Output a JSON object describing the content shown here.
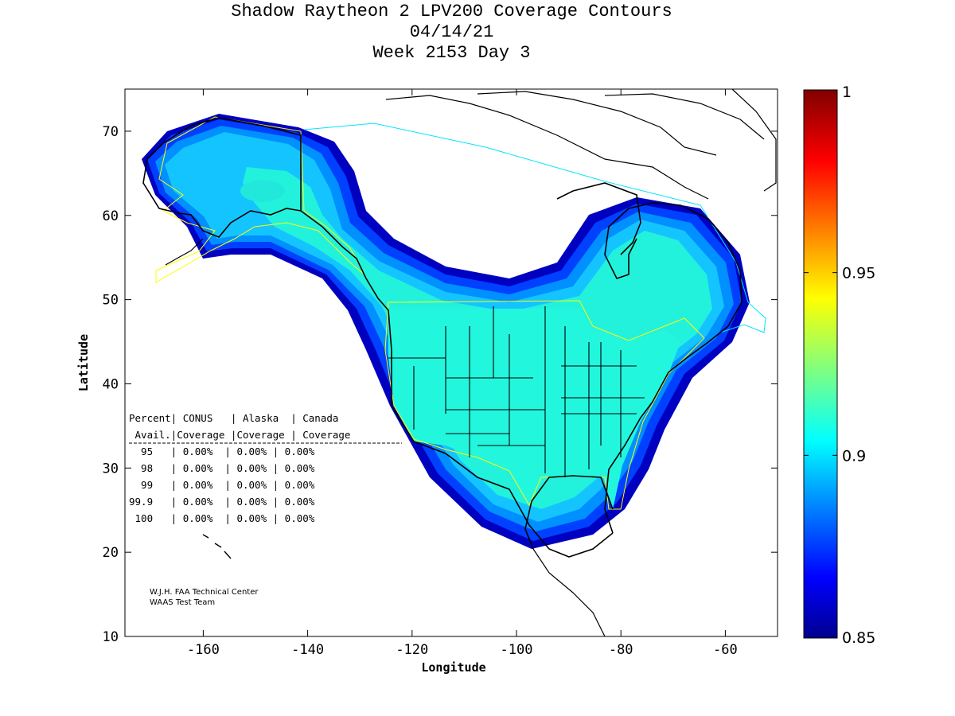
{
  "title": {
    "line1": "Shadow Raytheon 2 LPV200 Coverage Contours",
    "line2": "04/14/21",
    "line3": "Week 2153 Day 3"
  },
  "axes": {
    "xlabel": "Longitude",
    "ylabel": "Latitude",
    "x_ticks": [
      "-160",
      "-140",
      "-120",
      "-100",
      "-80",
      "-60"
    ],
    "y_ticks": [
      "10",
      "20",
      "30",
      "40",
      "50",
      "60",
      "70"
    ],
    "xlim": [
      -175,
      -50
    ],
    "ylim": [
      10,
      75
    ]
  },
  "colorbar": {
    "ticks": [
      "1",
      "0.95",
      "0.9",
      "0.85"
    ],
    "range": [
      0.85,
      1.0
    ],
    "colormap": "jet"
  },
  "table": {
    "header1": "Percent| CONUS   | Alaska  | Canada",
    "header2": " Avail.|Coverage |Coverage | Coverage",
    "rows": [
      "  95   | 0.00%  | 0.00% | 0.00%",
      "  98   | 0.00%  | 0.00% | 0.00%",
      "  99   | 0.00%  | 0.00% | 0.00%",
      "99.9   | 0.00%  | 0.00% | 0.00%",
      " 100   | 0.00%  | 0.00% | 0.00%"
    ]
  },
  "credit": {
    "line1": "W.J.H. FAA Technical Center",
    "line2": "WAAS Test Team"
  },
  "colors": {
    "coverage_interior": "#22f7de",
    "coverage_mid": "#14b8ff",
    "coverage_edge": "#0050ff",
    "coverage_outer": "#0000c8",
    "service_volume_conus": "#ffff00",
    "service_volume_canada": "#00e5ff",
    "coastline": "#000000"
  }
}
